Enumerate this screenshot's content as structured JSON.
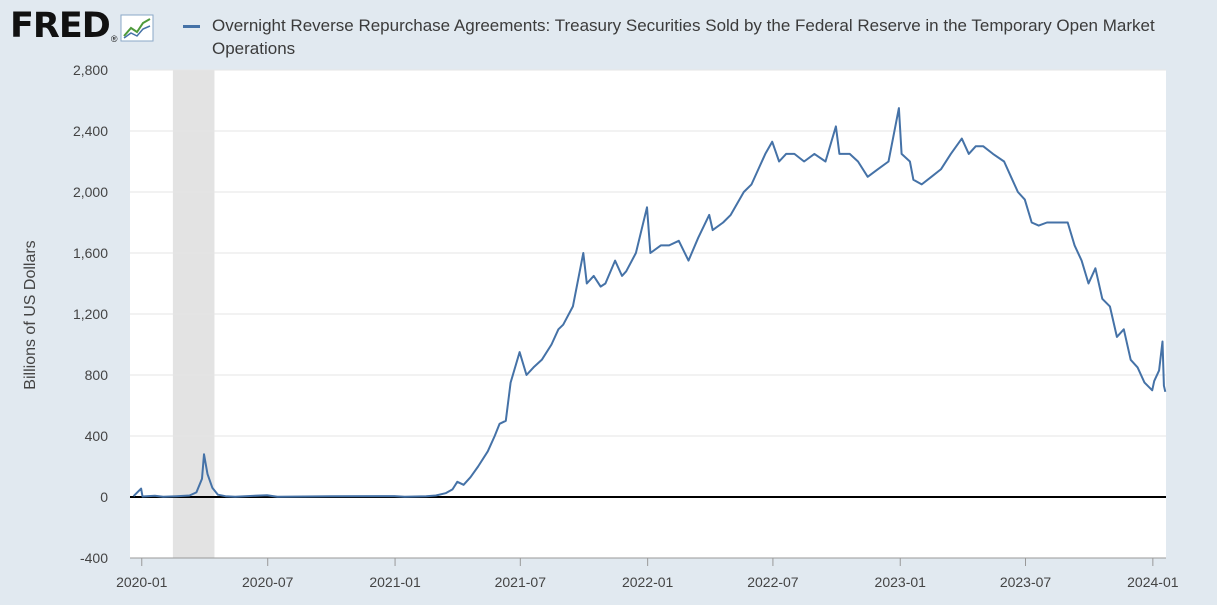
{
  "header": {
    "logo_text": "FRED",
    "logo_reg": "®",
    "legend_label": "Overnight Reverse Repurchase Agreements: Treasury Securities Sold by the Federal Reserve in the Temporary Open Market Operations"
  },
  "colors": {
    "page_background": "#e1e9f0",
    "plot_background": "#ffffff",
    "series_line": "#4572a7",
    "recession_shading": "#e3e3e3",
    "zero_line": "#000000",
    "gridline": "#e6e6e6"
  },
  "chart_data": {
    "type": "line",
    "title": "",
    "ylabel": "Billions of US Dollars",
    "xlabel": "",
    "ylim": [
      -400,
      2800
    ],
    "xlim": [
      "2019-12-15",
      "2024-01-20"
    ],
    "yticks": [
      -400,
      0,
      400,
      800,
      1200,
      1600,
      2000,
      2400,
      2800
    ],
    "ytick_labels": [
      "-400",
      "0",
      "400",
      "800",
      "1,200",
      "1,600",
      "2,000",
      "2,400",
      "2,800"
    ],
    "xtick_dates": [
      "2020-01-01",
      "2020-07-01",
      "2021-01-01",
      "2021-07-01",
      "2022-01-01",
      "2022-07-01",
      "2023-01-01",
      "2023-07-01",
      "2024-01-01"
    ],
    "xtick_labels": [
      "2020-01",
      "2020-07",
      "2021-01",
      "2021-07",
      "2022-01",
      "2022-07",
      "2023-01",
      "2023-07",
      "2024-01"
    ],
    "grid": "horizontal",
    "recession_shading": [
      [
        "2020-02-15",
        "2020-04-15"
      ]
    ],
    "series": [
      {
        "name": "Overnight Reverse Repurchase Agreements: Treasury Securities Sold by the Federal Reserve in the Temporary Open Market Operations",
        "points": [
          [
            "2019-12-20",
            5
          ],
          [
            "2019-12-31",
            55
          ],
          [
            "2020-01-02",
            3
          ],
          [
            "2020-01-20",
            8
          ],
          [
            "2020-02-01",
            2
          ],
          [
            "2020-02-20",
            5
          ],
          [
            "2020-03-10",
            10
          ],
          [
            "2020-03-20",
            30
          ],
          [
            "2020-03-28",
            120
          ],
          [
            "2020-03-31",
            280
          ],
          [
            "2020-04-05",
            150
          ],
          [
            "2020-04-12",
            60
          ],
          [
            "2020-04-20",
            15
          ],
          [
            "2020-05-01",
            5
          ],
          [
            "2020-05-15",
            2
          ],
          [
            "2020-06-30",
            12
          ],
          [
            "2020-07-15",
            2
          ],
          [
            "2020-09-30",
            5
          ],
          [
            "2020-12-31",
            6
          ],
          [
            "2021-01-15",
            1
          ],
          [
            "2021-02-15",
            5
          ],
          [
            "2021-03-01",
            10
          ],
          [
            "2021-03-15",
            25
          ],
          [
            "2021-03-25",
            50
          ],
          [
            "2021-04-01",
            100
          ],
          [
            "2021-04-10",
            80
          ],
          [
            "2021-04-20",
            130
          ],
          [
            "2021-05-01",
            200
          ],
          [
            "2021-05-15",
            300
          ],
          [
            "2021-05-25",
            400
          ],
          [
            "2021-06-01",
            480
          ],
          [
            "2021-06-10",
            500
          ],
          [
            "2021-06-17",
            750
          ],
          [
            "2021-06-30",
            950
          ],
          [
            "2021-07-10",
            800
          ],
          [
            "2021-07-20",
            850
          ],
          [
            "2021-08-01",
            900
          ],
          [
            "2021-08-15",
            1000
          ],
          [
            "2021-08-25",
            1100
          ],
          [
            "2021-09-01",
            1130
          ],
          [
            "2021-09-15",
            1250
          ],
          [
            "2021-09-30",
            1600
          ],
          [
            "2021-10-05",
            1400
          ],
          [
            "2021-10-15",
            1450
          ],
          [
            "2021-10-25",
            1380
          ],
          [
            "2021-11-01",
            1400
          ],
          [
            "2021-11-15",
            1550
          ],
          [
            "2021-11-25",
            1450
          ],
          [
            "2021-12-01",
            1480
          ],
          [
            "2021-12-15",
            1600
          ],
          [
            "2021-12-31",
            1900
          ],
          [
            "2022-01-05",
            1600
          ],
          [
            "2022-01-20",
            1650
          ],
          [
            "2022-02-01",
            1650
          ],
          [
            "2022-02-15",
            1680
          ],
          [
            "2022-03-01",
            1550
          ],
          [
            "2022-03-15",
            1700
          ],
          [
            "2022-03-31",
            1850
          ],
          [
            "2022-04-05",
            1750
          ],
          [
            "2022-04-20",
            1800
          ],
          [
            "2022-05-01",
            1850
          ],
          [
            "2022-05-20",
            2000
          ],
          [
            "2022-05-31",
            2050
          ],
          [
            "2022-06-10",
            2150
          ],
          [
            "2022-06-20",
            2250
          ],
          [
            "2022-06-30",
            2330
          ],
          [
            "2022-07-10",
            2200
          ],
          [
            "2022-07-20",
            2250
          ],
          [
            "2022-08-01",
            2250
          ],
          [
            "2022-08-15",
            2200
          ],
          [
            "2022-08-30",
            2250
          ],
          [
            "2022-09-15",
            2200
          ],
          [
            "2022-09-30",
            2430
          ],
          [
            "2022-10-05",
            2250
          ],
          [
            "2022-10-20",
            2250
          ],
          [
            "2022-11-01",
            2200
          ],
          [
            "2022-11-15",
            2100
          ],
          [
            "2022-11-30",
            2150
          ],
          [
            "2022-12-15",
            2200
          ],
          [
            "2022-12-30",
            2550
          ],
          [
            "2023-01-03",
            2250
          ],
          [
            "2023-01-15",
            2200
          ],
          [
            "2023-01-20",
            2080
          ],
          [
            "2023-02-01",
            2050
          ],
          [
            "2023-02-15",
            2100
          ],
          [
            "2023-03-01",
            2150
          ],
          [
            "2023-03-15",
            2250
          ],
          [
            "2023-03-31",
            2350
          ],
          [
            "2023-04-10",
            2250
          ],
          [
            "2023-04-20",
            2300
          ],
          [
            "2023-05-01",
            2300
          ],
          [
            "2023-05-15",
            2250
          ],
          [
            "2023-05-31",
            2200
          ],
          [
            "2023-06-10",
            2100
          ],
          [
            "2023-06-20",
            2000
          ],
          [
            "2023-06-30",
            1950
          ],
          [
            "2023-07-10",
            1800
          ],
          [
            "2023-07-20",
            1780
          ],
          [
            "2023-08-01",
            1800
          ],
          [
            "2023-08-15",
            1800
          ],
          [
            "2023-08-31",
            1800
          ],
          [
            "2023-09-10",
            1650
          ],
          [
            "2023-09-20",
            1550
          ],
          [
            "2023-09-30",
            1400
          ],
          [
            "2023-10-10",
            1500
          ],
          [
            "2023-10-20",
            1300
          ],
          [
            "2023-10-31",
            1250
          ],
          [
            "2023-11-10",
            1050
          ],
          [
            "2023-11-20",
            1100
          ],
          [
            "2023-11-30",
            900
          ],
          [
            "2023-12-10",
            850
          ],
          [
            "2023-12-20",
            750
          ],
          [
            "2023-12-31",
            700
          ],
          [
            "2024-01-03",
            760
          ],
          [
            "2024-01-10",
            830
          ],
          [
            "2024-01-15",
            1020
          ],
          [
            "2024-01-17",
            730
          ],
          [
            "2024-01-19",
            690
          ]
        ]
      }
    ]
  }
}
